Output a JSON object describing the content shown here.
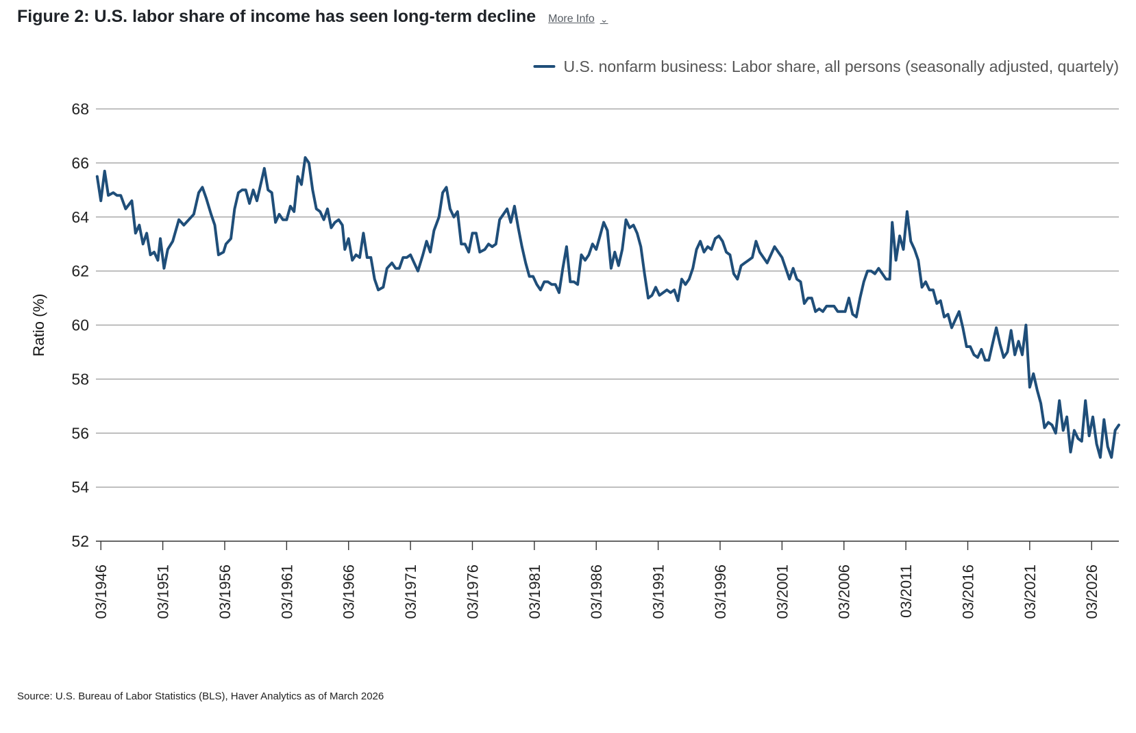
{
  "header": {
    "title": "Figure 2: U.S. labor share of income has seen long-term decline",
    "more_info_label": "More Info",
    "more_info_icon": "chevron-down-icon"
  },
  "source": "Source: U.S. Bureau of Labor Statistics (BLS), Haver Analytics as of March 2026",
  "colors": {
    "series": "#1f4e79",
    "grid": "#9a9a9a",
    "axis": "#333333",
    "text": "#222222"
  },
  "chart_data": {
    "type": "line",
    "title": "",
    "xlabel": "",
    "ylabel": "Ratio (%)",
    "ylim": [
      52,
      68
    ],
    "yticks": [
      52,
      54,
      56,
      58,
      60,
      62,
      64,
      66,
      68
    ],
    "xlim": [
      1945.6,
      2028.2
    ],
    "xticks": [
      1946,
      1951,
      1956,
      1961,
      1966,
      1971,
      1976,
      1981,
      1986,
      1991,
      1996,
      2001,
      2006,
      2011,
      2016,
      2021,
      2026
    ],
    "xtick_labels": [
      "03/1946",
      "03/1951",
      "03/1956",
      "03/1961",
      "03/1966",
      "03/1971",
      "03/1976",
      "03/1981",
      "03/1986",
      "03/1991",
      "03/1996",
      "03/2001",
      "03/2006",
      "03/2011",
      "03/2016",
      "03/2021",
      "03/2026"
    ],
    "grid": "horizontal",
    "legend_position": "top-right",
    "series": [
      {
        "name": "U.S. nonfarm business: Labor share, all persons (seasonally adjusted, quartely)",
        "color": "#1f4e79",
        "points": [
          [
            1945.7,
            65.5
          ],
          [
            1946.0,
            64.6
          ],
          [
            1946.3,
            65.7
          ],
          [
            1946.6,
            64.8
          ],
          [
            1947.0,
            64.9
          ],
          [
            1947.3,
            64.8
          ],
          [
            1947.6,
            64.8
          ],
          [
            1948.0,
            64.3
          ],
          [
            1948.5,
            64.6
          ],
          [
            1948.8,
            63.4
          ],
          [
            1949.1,
            63.7
          ],
          [
            1949.4,
            63.0
          ],
          [
            1949.7,
            63.4
          ],
          [
            1950.0,
            62.6
          ],
          [
            1950.3,
            62.7
          ],
          [
            1950.6,
            62.4
          ],
          [
            1950.8,
            63.2
          ],
          [
            1951.1,
            62.1
          ],
          [
            1951.4,
            62.8
          ],
          [
            1951.8,
            63.1
          ],
          [
            1952.3,
            63.9
          ],
          [
            1952.7,
            63.7
          ],
          [
            1953.1,
            63.9
          ],
          [
            1953.5,
            64.1
          ],
          [
            1953.9,
            64.9
          ],
          [
            1954.2,
            65.1
          ],
          [
            1954.5,
            64.7
          ],
          [
            1954.9,
            64.1
          ],
          [
            1955.2,
            63.7
          ],
          [
            1955.5,
            62.6
          ],
          [
            1955.9,
            62.7
          ],
          [
            1956.1,
            63.0
          ],
          [
            1956.5,
            63.2
          ],
          [
            1956.8,
            64.3
          ],
          [
            1957.1,
            64.9
          ],
          [
            1957.4,
            65.0
          ],
          [
            1957.7,
            65.0
          ],
          [
            1958.0,
            64.5
          ],
          [
            1958.3,
            65.0
          ],
          [
            1958.6,
            64.6
          ],
          [
            1958.9,
            65.2
          ],
          [
            1959.2,
            65.8
          ],
          [
            1959.5,
            65.0
          ],
          [
            1959.8,
            64.9
          ],
          [
            1960.1,
            63.8
          ],
          [
            1960.4,
            64.1
          ],
          [
            1960.7,
            63.9
          ],
          [
            1961.0,
            63.9
          ],
          [
            1961.3,
            64.4
          ],
          [
            1961.6,
            64.2
          ],
          [
            1961.9,
            65.5
          ],
          [
            1962.2,
            65.2
          ],
          [
            1962.5,
            66.2
          ],
          [
            1962.8,
            66.0
          ],
          [
            1963.1,
            65.0
          ],
          [
            1963.4,
            64.3
          ],
          [
            1963.7,
            64.2
          ],
          [
            1964.0,
            63.9
          ],
          [
            1964.3,
            64.3
          ],
          [
            1964.6,
            63.6
          ],
          [
            1964.9,
            63.8
          ],
          [
            1965.2,
            63.9
          ],
          [
            1965.5,
            63.7
          ],
          [
            1965.7,
            62.8
          ],
          [
            1966.0,
            63.2
          ],
          [
            1966.3,
            62.4
          ],
          [
            1966.6,
            62.6
          ],
          [
            1966.9,
            62.5
          ],
          [
            1967.2,
            63.4
          ],
          [
            1967.5,
            62.5
          ],
          [
            1967.8,
            62.5
          ],
          [
            1968.1,
            61.7
          ],
          [
            1968.4,
            61.3
          ],
          [
            1968.8,
            61.4
          ],
          [
            1969.1,
            62.1
          ],
          [
            1969.5,
            62.3
          ],
          [
            1969.8,
            62.1
          ],
          [
            1970.1,
            62.1
          ],
          [
            1970.4,
            62.5
          ],
          [
            1970.7,
            62.5
          ],
          [
            1971.0,
            62.6
          ],
          [
            1971.3,
            62.3
          ],
          [
            1971.6,
            62.0
          ],
          [
            1972.0,
            62.6
          ],
          [
            1972.3,
            63.1
          ],
          [
            1972.6,
            62.7
          ],
          [
            1972.9,
            63.5
          ],
          [
            1973.3,
            64.0
          ],
          [
            1973.6,
            64.9
          ],
          [
            1973.9,
            65.1
          ],
          [
            1974.2,
            64.3
          ],
          [
            1974.5,
            64.0
          ],
          [
            1974.8,
            64.2
          ],
          [
            1975.1,
            63.0
          ],
          [
            1975.4,
            63.0
          ],
          [
            1975.7,
            62.7
          ],
          [
            1976.0,
            63.4
          ],
          [
            1976.3,
            63.4
          ],
          [
            1976.6,
            62.7
          ],
          [
            1977.0,
            62.8
          ],
          [
            1977.3,
            63.0
          ],
          [
            1977.6,
            62.9
          ],
          [
            1977.9,
            63.0
          ],
          [
            1978.2,
            63.9
          ],
          [
            1978.5,
            64.1
          ],
          [
            1978.8,
            64.3
          ],
          [
            1979.1,
            63.8
          ],
          [
            1979.4,
            64.4
          ],
          [
            1979.7,
            63.6
          ],
          [
            1980.0,
            62.9
          ],
          [
            1980.3,
            62.3
          ],
          [
            1980.6,
            61.8
          ],
          [
            1980.9,
            61.8
          ],
          [
            1981.2,
            61.5
          ],
          [
            1981.5,
            61.3
          ],
          [
            1981.8,
            61.6
          ],
          [
            1982.1,
            61.6
          ],
          [
            1982.4,
            61.5
          ],
          [
            1982.7,
            61.5
          ],
          [
            1983.0,
            61.2
          ],
          [
            1983.3,
            62.1
          ],
          [
            1983.6,
            62.9
          ],
          [
            1983.9,
            61.6
          ],
          [
            1984.2,
            61.6
          ],
          [
            1984.5,
            61.5
          ],
          [
            1984.8,
            62.6
          ],
          [
            1985.1,
            62.4
          ],
          [
            1985.4,
            62.6
          ],
          [
            1985.7,
            63.0
          ],
          [
            1986.0,
            62.8
          ],
          [
            1986.3,
            63.3
          ],
          [
            1986.6,
            63.8
          ],
          [
            1986.9,
            63.5
          ],
          [
            1987.2,
            62.1
          ],
          [
            1987.5,
            62.7
          ],
          [
            1987.8,
            62.2
          ],
          [
            1988.1,
            62.8
          ],
          [
            1988.4,
            63.9
          ],
          [
            1988.7,
            63.6
          ],
          [
            1989.0,
            63.7
          ],
          [
            1989.3,
            63.4
          ],
          [
            1989.6,
            62.9
          ],
          [
            1989.9,
            61.9
          ],
          [
            1990.2,
            61.0
          ],
          [
            1990.5,
            61.1
          ],
          [
            1990.8,
            61.4
          ],
          [
            1991.1,
            61.1
          ],
          [
            1991.4,
            61.2
          ],
          [
            1991.7,
            61.3
          ],
          [
            1992.0,
            61.2
          ],
          [
            1992.3,
            61.3
          ],
          [
            1992.6,
            60.9
          ],
          [
            1992.9,
            61.7
          ],
          [
            1993.2,
            61.5
          ],
          [
            1993.5,
            61.7
          ],
          [
            1993.8,
            62.1
          ],
          [
            1994.1,
            62.8
          ],
          [
            1994.4,
            63.1
          ],
          [
            1994.7,
            62.7
          ],
          [
            1995.0,
            62.9
          ],
          [
            1995.3,
            62.8
          ],
          [
            1995.6,
            63.2
          ],
          [
            1995.9,
            63.3
          ],
          [
            1996.2,
            63.1
          ],
          [
            1996.5,
            62.7
          ],
          [
            1996.8,
            62.6
          ],
          [
            1997.1,
            61.9
          ],
          [
            1997.4,
            61.7
          ],
          [
            1997.7,
            62.2
          ],
          [
            1998.0,
            62.3
          ],
          [
            1998.3,
            62.4
          ],
          [
            1998.6,
            62.5
          ],
          [
            1998.9,
            63.1
          ],
          [
            1999.2,
            62.7
          ],
          [
            1999.5,
            62.5
          ],
          [
            1999.8,
            62.3
          ],
          [
            2000.1,
            62.6
          ],
          [
            2000.4,
            62.9
          ],
          [
            2000.7,
            62.7
          ],
          [
            2001.0,
            62.5
          ],
          [
            2001.3,
            62.1
          ],
          [
            2001.6,
            61.7
          ],
          [
            2001.9,
            62.1
          ],
          [
            2002.2,
            61.7
          ],
          [
            2002.5,
            61.6
          ],
          [
            2002.8,
            60.8
          ],
          [
            2003.1,
            61.0
          ],
          [
            2003.4,
            61.0
          ],
          [
            2003.7,
            60.5
          ],
          [
            2004.0,
            60.6
          ],
          [
            2004.3,
            60.5
          ],
          [
            2004.6,
            60.7
          ],
          [
            2004.9,
            60.7
          ],
          [
            2005.2,
            60.7
          ],
          [
            2005.5,
            60.5
          ],
          [
            2005.8,
            60.5
          ],
          [
            2006.1,
            60.5
          ],
          [
            2006.4,
            61.0
          ],
          [
            2006.7,
            60.4
          ],
          [
            2007.0,
            60.3
          ],
          [
            2007.3,
            61.0
          ],
          [
            2007.6,
            61.6
          ],
          [
            2007.9,
            62.0
          ],
          [
            2008.2,
            62.0
          ],
          [
            2008.5,
            61.9
          ],
          [
            2008.8,
            62.1
          ],
          [
            2009.1,
            61.9
          ],
          [
            2009.4,
            61.7
          ],
          [
            2009.7,
            61.7
          ],
          [
            2009.9,
            63.8
          ],
          [
            2010.2,
            62.4
          ],
          [
            2010.5,
            63.3
          ],
          [
            2010.8,
            62.8
          ],
          [
            2011.1,
            64.2
          ],
          [
            2011.4,
            63.1
          ],
          [
            2011.7,
            62.8
          ],
          [
            2012.0,
            62.4
          ],
          [
            2012.3,
            61.4
          ],
          [
            2012.6,
            61.6
          ],
          [
            2012.9,
            61.3
          ],
          [
            2013.2,
            61.3
          ],
          [
            2013.5,
            60.8
          ],
          [
            2013.8,
            60.9
          ],
          [
            2014.1,
            60.3
          ],
          [
            2014.4,
            60.4
          ],
          [
            2014.7,
            59.9
          ],
          [
            2015.0,
            60.2
          ],
          [
            2015.3,
            60.5
          ],
          [
            2015.6,
            59.9
          ],
          [
            2015.9,
            59.2
          ],
          [
            2016.2,
            59.2
          ],
          [
            2016.5,
            58.9
          ],
          [
            2016.8,
            58.8
          ],
          [
            2017.1,
            59.1
          ],
          [
            2017.4,
            58.7
          ],
          [
            2017.7,
            58.7
          ],
          [
            2018.0,
            59.3
          ],
          [
            2018.3,
            59.9
          ],
          [
            2018.6,
            59.3
          ],
          [
            2018.9,
            58.8
          ],
          [
            2019.2,
            59.0
          ],
          [
            2019.5,
            59.8
          ],
          [
            2019.8,
            58.9
          ],
          [
            2020.1,
            59.4
          ],
          [
            2020.4,
            58.9
          ],
          [
            2020.7,
            60.0
          ],
          [
            2021.0,
            57.7
          ],
          [
            2021.3,
            58.2
          ],
          [
            2021.6,
            57.6
          ],
          [
            2021.9,
            57.1
          ],
          [
            2022.2,
            56.2
          ],
          [
            2022.5,
            56.4
          ],
          [
            2022.8,
            56.3
          ],
          [
            2023.1,
            56.0
          ],
          [
            2023.4,
            57.2
          ],
          [
            2023.7,
            56.1
          ],
          [
            2024.0,
            56.6
          ],
          [
            2024.3,
            55.3
          ],
          [
            2024.6,
            56.1
          ],
          [
            2024.9,
            55.8
          ],
          [
            2025.2,
            55.7
          ],
          [
            2025.5,
            57.2
          ],
          [
            2025.8,
            55.9
          ],
          [
            2026.1,
            56.6
          ],
          [
            2026.4,
            55.6
          ],
          [
            2026.7,
            55.1
          ],
          [
            2027.0,
            56.5
          ],
          [
            2027.3,
            55.5
          ],
          [
            2027.6,
            55.1
          ],
          [
            2027.9,
            56.1
          ],
          [
            2028.2,
            56.3
          ]
        ]
      }
    ]
  }
}
